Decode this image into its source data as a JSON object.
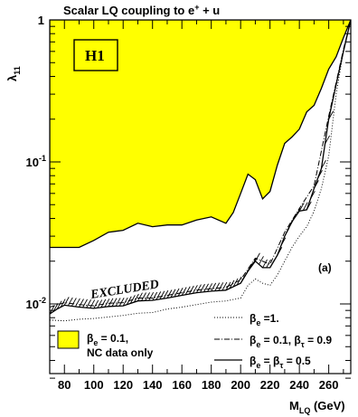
{
  "chart_data": {
    "type": "line",
    "title": {
      "main": "Scalar LQ coupling to e",
      "sup": "+",
      "tail": " + u"
    },
    "xlabel": {
      "main": "M",
      "sub": "LQ",
      "tail": " (GeV)"
    },
    "ylabel": {
      "main": "λ",
      "sub": "11"
    },
    "xlim": [
      70,
      275
    ],
    "ylim": [
      0.003,
      1
    ],
    "yscale": "log",
    "x_ticks": [
      80,
      100,
      120,
      140,
      160,
      180,
      200,
      220,
      240,
      260
    ],
    "y_ticks": [
      {
        "value": 1,
        "base": "1",
        "exp": ""
      },
      {
        "value": 0.1,
        "base": "10",
        "exp": "-1"
      },
      {
        "value": 0.01,
        "base": "10",
        "exp": "-2"
      }
    ],
    "labels": {
      "experiment": "H1",
      "excluded": "EXCLUDED",
      "panel": "(a)"
    },
    "series": [
      {
        "name": "β_e = 0.1, NC data only",
        "legend": {
          "main": "β",
          "sub": "e",
          "tail": " = 0.1,",
          "line2": "NC data only"
        },
        "style": "filled",
        "color": "#ffff00",
        "x": [
          70,
          80,
          90,
          100,
          110,
          120,
          130,
          140,
          150,
          160,
          170,
          180,
          190,
          195,
          200,
          205,
          210,
          215,
          220,
          225,
          230,
          235,
          240,
          245,
          250,
          255,
          260,
          265,
          270,
          275
        ],
        "y": [
          0.025,
          0.025,
          0.025,
          0.028,
          0.032,
          0.033,
          0.037,
          0.035,
          0.036,
          0.036,
          0.039,
          0.041,
          0.037,
          0.044,
          0.06,
          0.082,
          0.075,
          0.055,
          0.062,
          0.095,
          0.135,
          0.15,
          0.17,
          0.225,
          0.25,
          0.33,
          0.45,
          0.55,
          0.75,
          1.0
        ]
      },
      {
        "name": "β_e = β_τ = 0.5",
        "legend": {
          "main": "β",
          "sub": "e",
          "tail": " = β",
          "sub2": "τ",
          "tail2": " = 0.5"
        },
        "style": "solid",
        "color": "#000000",
        "x": [
          70,
          75,
          80,
          90,
          100,
          110,
          120,
          130,
          140,
          150,
          160,
          170,
          180,
          190,
          200,
          205,
          210,
          215,
          220,
          225,
          230,
          235,
          240,
          245,
          250,
          255,
          260,
          265,
          270,
          275
        ],
        "y": [
          0.0085,
          0.0092,
          0.0098,
          0.0095,
          0.0093,
          0.0096,
          0.0097,
          0.0105,
          0.0106,
          0.011,
          0.0115,
          0.012,
          0.0123,
          0.0125,
          0.014,
          0.017,
          0.02,
          0.018,
          0.018,
          0.022,
          0.03,
          0.038,
          0.045,
          0.046,
          0.065,
          0.09,
          0.2,
          0.35,
          0.6,
          1.0
        ]
      },
      {
        "name": "β_e = 0.1, β_τ = 0.9",
        "legend": {
          "main": "β",
          "sub": "e",
          "tail": " = 0.1, β",
          "sub2": "τ",
          "tail2": " = 0.9"
        },
        "style": "dashdot",
        "color": "#000000",
        "x": [
          70,
          80,
          90,
          100,
          110,
          120,
          130,
          140,
          150,
          160,
          170,
          180,
          190,
          200,
          210,
          220,
          230,
          240,
          250,
          260,
          270,
          275
        ],
        "y": [
          0.0095,
          0.0102,
          0.0099,
          0.0097,
          0.0101,
          0.0102,
          0.011,
          0.011,
          0.0115,
          0.012,
          0.0125,
          0.0128,
          0.0131,
          0.0148,
          0.021,
          0.019,
          0.032,
          0.047,
          0.068,
          0.21,
          0.62,
          1.0
        ]
      },
      {
        "name": "β_e = 1.",
        "legend": {
          "main": "β",
          "sub": "e",
          "tail": " =1."
        },
        "style": "dotted",
        "color": "#000000",
        "x": [
          70,
          80,
          90,
          100,
          110,
          120,
          130,
          140,
          150,
          160,
          170,
          180,
          190,
          200,
          205,
          210,
          215,
          220,
          225,
          230,
          235,
          240,
          245,
          250,
          255,
          260,
          265,
          270,
          275
        ],
        "y": [
          0.0077,
          0.0076,
          0.0078,
          0.0079,
          0.0081,
          0.0083,
          0.0086,
          0.0087,
          0.0092,
          0.0095,
          0.0099,
          0.0103,
          0.0105,
          0.011,
          0.0135,
          0.015,
          0.014,
          0.0135,
          0.016,
          0.02,
          0.025,
          0.03,
          0.035,
          0.045,
          0.065,
          0.11,
          0.3,
          0.6,
          1.0
        ]
      }
    ]
  }
}
